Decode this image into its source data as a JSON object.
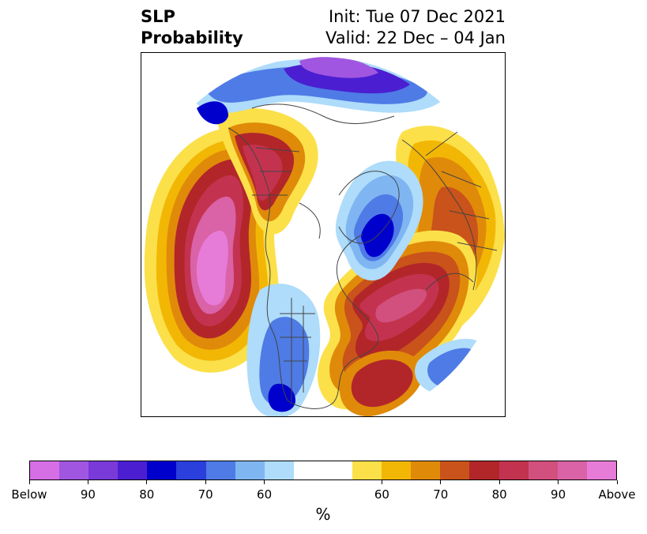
{
  "title": {
    "line1": "SLP",
    "line2": "Probability",
    "init": "Init: Tue 07 Dec 2021",
    "valid": "Valid: 22 Dec – 04 Jan"
  },
  "colorbar": {
    "units": "%",
    "colors": [
      "#d66ee6",
      "#a056e0",
      "#7a3ad9",
      "#4b1fd1",
      "#0000cd",
      "#2a3fdc",
      "#4f7be6",
      "#7fb6f2",
      "#aedcfa",
      "#ffffff",
      "#ffffff",
      "#fbe04a",
      "#f2b705",
      "#e08a0a",
      "#c9531a",
      "#b2262a",
      "#c3334f",
      "#d2507e",
      "#da62a6",
      "#e77bd8"
    ],
    "labels": [
      "Below",
      "90",
      "80",
      "70",
      "60",
      "60",
      "70",
      "80",
      "90",
      "Above"
    ]
  }
}
